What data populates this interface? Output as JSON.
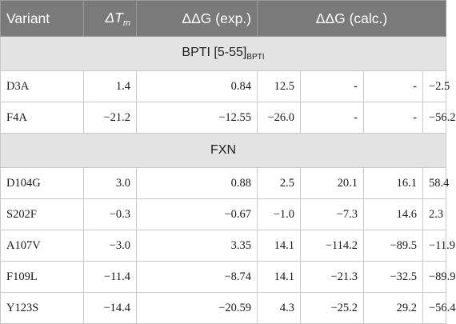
{
  "header": {
    "variant": "Variant",
    "dtm_prefix": "ΔT",
    "dtm_sub": "m",
    "ddg_exp": "ΔΔG (exp.)",
    "ddg_calc": "ΔΔG (calc.)"
  },
  "sections": [
    {
      "title": "BPTI [5-55]",
      "title_sub": "BPTI",
      "rows": [
        {
          "name": "D3A",
          "dtm": "1.4",
          "exp": "0.84",
          "c1": "12.5",
          "c2": "-",
          "c3": "-",
          "c4": "−2.5"
        },
        {
          "name": "F4A",
          "dtm": "−21.2",
          "exp": "−12.55",
          "c1": "−26.0",
          "c2": "-",
          "c3": "-",
          "c4": "−56.2"
        }
      ]
    },
    {
      "title": "FXN",
      "title_sub": "",
      "rows": [
        {
          "name": "D104G",
          "dtm": "3.0",
          "exp": "0.88",
          "c1": "2.5",
          "c2": "20.1",
          "c3": "16.1",
          "c4": "58.4"
        },
        {
          "name": "S202F",
          "dtm": "−0.3",
          "exp": "−0.67",
          "c1": "−1.0",
          "c2": "−7.3",
          "c3": "14.6",
          "c4": "2.3"
        },
        {
          "name": "A107V",
          "dtm": "−3.0",
          "exp": "3.35",
          "c1": "14.1",
          "c2": "−114.2",
          "c3": "−89.5",
          "c4": "−11.9"
        },
        {
          "name": "F109L",
          "dtm": "−11.4",
          "exp": "−8.74",
          "c1": "14.1",
          "c2": "−21.3",
          "c3": "−32.5",
          "c4": "−89.9"
        },
        {
          "name": "Y123S",
          "dtm": "−14.4",
          "exp": "−20.59",
          "c1": "4.3",
          "c2": "−25.2",
          "c3": "29.2",
          "c4": "−56.4"
        }
      ]
    }
  ]
}
